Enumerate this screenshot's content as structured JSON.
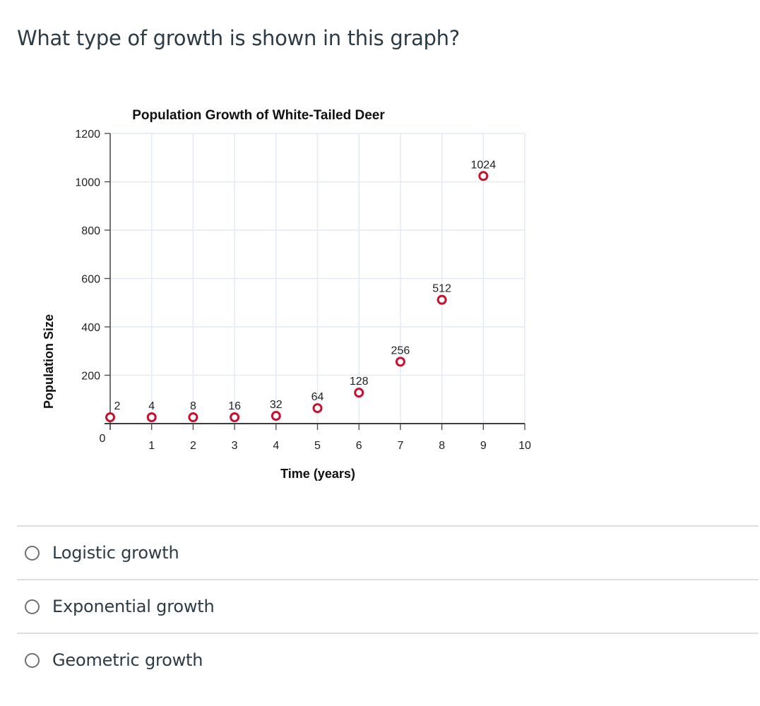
{
  "question": {
    "text": "What type of growth is shown in this graph?"
  },
  "chart_data": {
    "type": "scatter",
    "title": "Population Growth of White-Tailed Deer",
    "xlabel": "Time (years)",
    "ylabel": "Population Size",
    "xlim": [
      0,
      10
    ],
    "ylim": [
      0,
      1200
    ],
    "xticks": [
      0,
      1,
      2,
      3,
      4,
      5,
      6,
      7,
      8,
      9,
      10
    ],
    "yticks": [
      200,
      400,
      600,
      800,
      1000,
      1200
    ],
    "grid": true,
    "marker_color": "#c8102e",
    "gridline_color": "#e3e9f5",
    "points": [
      {
        "x": 0,
        "y": 2,
        "label": "2"
      },
      {
        "x": 1,
        "y": 4,
        "label": "4"
      },
      {
        "x": 2,
        "y": 8,
        "label": "8"
      },
      {
        "x": 3,
        "y": 16,
        "label": "16"
      },
      {
        "x": 4,
        "y": 32,
        "label": "32"
      },
      {
        "x": 5,
        "y": 64,
        "label": "64"
      },
      {
        "x": 6,
        "y": 128,
        "label": "128"
      },
      {
        "x": 7,
        "y": 256,
        "label": "256"
      },
      {
        "x": 8,
        "y": 512,
        "label": "512"
      },
      {
        "x": 9,
        "y": 1024,
        "label": "1024"
      }
    ]
  },
  "answers": [
    {
      "label": "Logistic growth",
      "selected": false
    },
    {
      "label": "Exponential growth",
      "selected": false
    },
    {
      "label": "Geometric growth",
      "selected": false
    }
  ]
}
